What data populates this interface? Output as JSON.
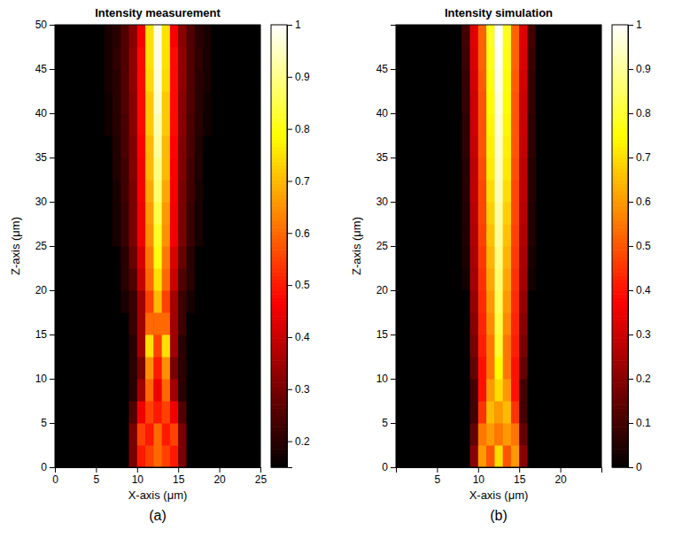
{
  "chart_data": [
    {
      "type": "heatmap",
      "title": "Intensity measurement",
      "x_label": "X-axis (μm)",
      "y_label": "Z-axis (μm)",
      "panel_label": "(a)",
      "x": [
        0.5,
        1.5,
        2.5,
        3.5,
        4.5,
        5.5,
        6.5,
        7.5,
        8.5,
        9.5,
        10.5,
        11.5,
        12.5,
        13.5,
        14.5,
        15.5,
        16.5,
        17.5,
        18.5,
        19.5,
        20.5,
        21.5,
        22.5,
        23.5,
        24.5
      ],
      "y": [
        1.25,
        3.75,
        6.25,
        8.75,
        11.25,
        13.75,
        16.25,
        18.75,
        21.25,
        23.75,
        26.25,
        28.75,
        31.25,
        33.75,
        36.25,
        38.75,
        41.25,
        43.75,
        46.25,
        48.75
      ],
      "values": [
        [
          0.15,
          0.15,
          0.15,
          0.15,
          0.15,
          0.15,
          0.15,
          0.15,
          0.15,
          0.3,
          0.5,
          0.55,
          0.6,
          0.55,
          0.5,
          0.3,
          0.15,
          0.15,
          0.15,
          0.15,
          0.15,
          0.15,
          0.15,
          0.15,
          0.15
        ],
        [
          0.15,
          0.15,
          0.15,
          0.15,
          0.15,
          0.15,
          0.15,
          0.15,
          0.15,
          0.3,
          0.55,
          0.5,
          0.6,
          0.5,
          0.55,
          0.3,
          0.15,
          0.15,
          0.15,
          0.15,
          0.15,
          0.15,
          0.15,
          0.15,
          0.15
        ],
        [
          0.15,
          0.15,
          0.15,
          0.15,
          0.15,
          0.15,
          0.15,
          0.15,
          0.15,
          0.25,
          0.45,
          0.55,
          0.5,
          0.55,
          0.45,
          0.25,
          0.15,
          0.15,
          0.15,
          0.15,
          0.15,
          0.15,
          0.15,
          0.15,
          0.15
        ],
        [
          0.15,
          0.15,
          0.15,
          0.15,
          0.15,
          0.15,
          0.15,
          0.15,
          0.15,
          0.2,
          0.35,
          0.6,
          0.45,
          0.6,
          0.35,
          0.2,
          0.15,
          0.15,
          0.15,
          0.15,
          0.15,
          0.15,
          0.15,
          0.15,
          0.15
        ],
        [
          0.15,
          0.15,
          0.15,
          0.15,
          0.15,
          0.15,
          0.15,
          0.15,
          0.15,
          0.2,
          0.3,
          0.65,
          0.5,
          0.65,
          0.3,
          0.2,
          0.15,
          0.15,
          0.15,
          0.15,
          0.15,
          0.15,
          0.15,
          0.15,
          0.15
        ],
        [
          0.15,
          0.15,
          0.15,
          0.15,
          0.15,
          0.15,
          0.15,
          0.15,
          0.15,
          0.2,
          0.35,
          0.75,
          0.55,
          0.75,
          0.35,
          0.2,
          0.15,
          0.15,
          0.15,
          0.15,
          0.15,
          0.15,
          0.15,
          0.15,
          0.15
        ],
        [
          0.15,
          0.15,
          0.15,
          0.15,
          0.15,
          0.15,
          0.15,
          0.15,
          0.15,
          0.22,
          0.35,
          0.6,
          0.6,
          0.6,
          0.35,
          0.22,
          0.15,
          0.15,
          0.15,
          0.15,
          0.15,
          0.15,
          0.15,
          0.15,
          0.15
        ],
        [
          0.15,
          0.15,
          0.15,
          0.15,
          0.15,
          0.15,
          0.15,
          0.15,
          0.18,
          0.22,
          0.35,
          0.55,
          0.7,
          0.55,
          0.35,
          0.22,
          0.18,
          0.15,
          0.15,
          0.15,
          0.15,
          0.15,
          0.15,
          0.15,
          0.15
        ],
        [
          0.15,
          0.15,
          0.15,
          0.15,
          0.15,
          0.15,
          0.15,
          0.15,
          0.2,
          0.25,
          0.4,
          0.6,
          0.75,
          0.6,
          0.4,
          0.25,
          0.2,
          0.15,
          0.15,
          0.15,
          0.15,
          0.15,
          0.15,
          0.15,
          0.15
        ],
        [
          0.15,
          0.15,
          0.15,
          0.15,
          0.15,
          0.15,
          0.15,
          0.15,
          0.2,
          0.28,
          0.42,
          0.62,
          0.8,
          0.62,
          0.42,
          0.28,
          0.2,
          0.15,
          0.15,
          0.15,
          0.15,
          0.15,
          0.15,
          0.15,
          0.15
        ],
        [
          0.15,
          0.15,
          0.15,
          0.15,
          0.15,
          0.15,
          0.15,
          0.18,
          0.22,
          0.3,
          0.45,
          0.65,
          0.82,
          0.65,
          0.45,
          0.3,
          0.22,
          0.18,
          0.15,
          0.15,
          0.15,
          0.15,
          0.15,
          0.15,
          0.15
        ],
        [
          0.15,
          0.15,
          0.15,
          0.15,
          0.15,
          0.15,
          0.15,
          0.18,
          0.22,
          0.3,
          0.45,
          0.66,
          0.85,
          0.66,
          0.45,
          0.3,
          0.22,
          0.18,
          0.15,
          0.15,
          0.15,
          0.15,
          0.15,
          0.15,
          0.15
        ],
        [
          0.15,
          0.15,
          0.15,
          0.15,
          0.15,
          0.15,
          0.15,
          0.18,
          0.23,
          0.3,
          0.46,
          0.68,
          0.88,
          0.68,
          0.46,
          0.3,
          0.23,
          0.18,
          0.15,
          0.15,
          0.15,
          0.15,
          0.15,
          0.15,
          0.15
        ],
        [
          0.15,
          0.15,
          0.15,
          0.15,
          0.15,
          0.15,
          0.15,
          0.19,
          0.23,
          0.31,
          0.46,
          0.7,
          0.9,
          0.7,
          0.46,
          0.31,
          0.23,
          0.19,
          0.15,
          0.15,
          0.15,
          0.15,
          0.15,
          0.15,
          0.15
        ],
        [
          0.15,
          0.15,
          0.15,
          0.15,
          0.15,
          0.15,
          0.15,
          0.19,
          0.24,
          0.31,
          0.47,
          0.7,
          0.92,
          0.7,
          0.47,
          0.31,
          0.24,
          0.19,
          0.15,
          0.15,
          0.15,
          0.15,
          0.15,
          0.15,
          0.15
        ],
        [
          0.15,
          0.15,
          0.15,
          0.15,
          0.15,
          0.15,
          0.17,
          0.2,
          0.24,
          0.32,
          0.48,
          0.72,
          0.94,
          0.72,
          0.48,
          0.32,
          0.24,
          0.2,
          0.17,
          0.15,
          0.15,
          0.15,
          0.15,
          0.15,
          0.15
        ],
        [
          0.15,
          0.15,
          0.15,
          0.15,
          0.15,
          0.15,
          0.17,
          0.2,
          0.25,
          0.32,
          0.48,
          0.72,
          0.96,
          0.72,
          0.48,
          0.32,
          0.25,
          0.2,
          0.17,
          0.15,
          0.15,
          0.15,
          0.15,
          0.15,
          0.15
        ],
        [
          0.15,
          0.15,
          0.15,
          0.15,
          0.15,
          0.15,
          0.18,
          0.2,
          0.25,
          0.33,
          0.48,
          0.74,
          0.97,
          0.74,
          0.48,
          0.33,
          0.25,
          0.2,
          0.18,
          0.15,
          0.15,
          0.15,
          0.15,
          0.15,
          0.15
        ],
        [
          0.15,
          0.15,
          0.15,
          0.15,
          0.15,
          0.15,
          0.18,
          0.21,
          0.25,
          0.33,
          0.48,
          0.75,
          0.98,
          0.75,
          0.48,
          0.33,
          0.25,
          0.21,
          0.18,
          0.15,
          0.15,
          0.15,
          0.15,
          0.15,
          0.15
        ],
        [
          0.15,
          0.15,
          0.15,
          0.15,
          0.15,
          0.15,
          0.18,
          0.2,
          0.25,
          0.32,
          0.46,
          0.75,
          0.98,
          0.75,
          0.46,
          0.32,
          0.25,
          0.2,
          0.18,
          0.15,
          0.15,
          0.15,
          0.15,
          0.15,
          0.15
        ]
      ],
      "xlim": [
        0,
        25
      ],
      "xticks": [
        0,
        5,
        10,
        15,
        20,
        25
      ],
      "ylim": [
        0,
        50
      ],
      "yticks": [
        0,
        5,
        10,
        15,
        20,
        25,
        30,
        35,
        40,
        45,
        50
      ],
      "colorbar": {
        "range": [
          0.15,
          1
        ],
        "ticks": [
          0.2,
          0.3,
          0.4,
          0.5,
          0.6,
          0.7,
          0.8,
          0.9,
          1
        ]
      }
    },
    {
      "type": "heatmap",
      "title": "Intensity simulation",
      "x_label": "X-axis (μm)",
      "y_label": "Z-axis (μm)",
      "panel_label": "(b)",
      "x": [
        0.5,
        1.5,
        2.5,
        3.5,
        4.5,
        5.5,
        6.5,
        7.5,
        8.5,
        9.5,
        10.5,
        11.5,
        12.5,
        13.5,
        14.5,
        15.5,
        16.5,
        17.5,
        18.5,
        19.5,
        20.5,
        21.5,
        22.5,
        23.5,
        24.5
      ],
      "y": [
        1.25,
        3.75,
        6.25,
        8.75,
        11.25,
        13.75,
        16.25,
        18.75,
        21.25,
        23.75,
        26.25,
        28.75,
        31.25,
        33.75,
        36.25,
        38.75,
        41.25,
        43.75,
        46.25,
        48.75
      ],
      "values": [
        [
          0,
          0,
          0,
          0,
          0,
          0,
          0,
          0,
          0,
          0.2,
          0.6,
          0.5,
          0.7,
          0.5,
          0.6,
          0.2,
          0,
          0,
          0,
          0,
          0,
          0,
          0,
          0,
          0
        ],
        [
          0,
          0,
          0,
          0,
          0,
          0,
          0,
          0,
          0,
          0.15,
          0.55,
          0.6,
          0.55,
          0.6,
          0.55,
          0.15,
          0,
          0,
          0,
          0,
          0,
          0,
          0,
          0,
          0
        ],
        [
          0,
          0,
          0,
          0,
          0,
          0,
          0,
          0,
          0,
          0.1,
          0.45,
          0.65,
          0.6,
          0.65,
          0.45,
          0.1,
          0,
          0,
          0,
          0,
          0,
          0,
          0,
          0,
          0
        ],
        [
          0,
          0,
          0,
          0,
          0,
          0,
          0,
          0,
          0,
          0.1,
          0.4,
          0.6,
          0.7,
          0.6,
          0.4,
          0.1,
          0,
          0,
          0,
          0,
          0,
          0,
          0,
          0,
          0
        ],
        [
          0,
          0,
          0,
          0,
          0,
          0,
          0,
          0,
          0,
          0.15,
          0.4,
          0.55,
          0.75,
          0.55,
          0.4,
          0.15,
          0,
          0,
          0,
          0,
          0,
          0,
          0,
          0,
          0
        ],
        [
          0,
          0,
          0,
          0,
          0,
          0,
          0,
          0,
          0,
          0.18,
          0.42,
          0.55,
          0.8,
          0.55,
          0.42,
          0.18,
          0,
          0,
          0,
          0,
          0,
          0,
          0,
          0,
          0
        ],
        [
          0,
          0,
          0,
          0,
          0,
          0,
          0,
          0,
          0,
          0.2,
          0.43,
          0.58,
          0.82,
          0.58,
          0.43,
          0.2,
          0,
          0,
          0,
          0,
          0,
          0,
          0,
          0,
          0
        ],
        [
          0,
          0,
          0,
          0,
          0,
          0,
          0,
          0,
          0,
          0.22,
          0.44,
          0.6,
          0.84,
          0.6,
          0.44,
          0.22,
          0,
          0,
          0,
          0,
          0,
          0,
          0,
          0,
          0
        ],
        [
          0,
          0,
          0,
          0,
          0,
          0,
          0,
          0,
          0.03,
          0.24,
          0.45,
          0.62,
          0.86,
          0.62,
          0.45,
          0.24,
          0.03,
          0,
          0,
          0,
          0,
          0,
          0,
          0,
          0
        ],
        [
          0,
          0,
          0,
          0,
          0,
          0,
          0,
          0,
          0.04,
          0.25,
          0.46,
          0.64,
          0.88,
          0.64,
          0.46,
          0.25,
          0.04,
          0,
          0,
          0,
          0,
          0,
          0,
          0,
          0
        ],
        [
          0,
          0,
          0,
          0,
          0,
          0,
          0,
          0,
          0.05,
          0.26,
          0.47,
          0.66,
          0.9,
          0.66,
          0.47,
          0.26,
          0.05,
          0,
          0,
          0,
          0,
          0,
          0,
          0,
          0
        ],
        [
          0,
          0,
          0,
          0,
          0,
          0,
          0,
          0,
          0.05,
          0.27,
          0.48,
          0.68,
          0.91,
          0.68,
          0.48,
          0.27,
          0.05,
          0,
          0,
          0,
          0,
          0,
          0,
          0,
          0
        ],
        [
          0,
          0,
          0,
          0,
          0,
          0,
          0,
          0,
          0.06,
          0.28,
          0.48,
          0.7,
          0.93,
          0.7,
          0.48,
          0.28,
          0.06,
          0,
          0,
          0,
          0,
          0,
          0,
          0,
          0
        ],
        [
          0,
          0,
          0,
          0,
          0,
          0,
          0,
          0,
          0.06,
          0.28,
          0.49,
          0.72,
          0.94,
          0.72,
          0.49,
          0.28,
          0.06,
          0,
          0,
          0,
          0,
          0,
          0,
          0,
          0
        ],
        [
          0,
          0,
          0,
          0,
          0,
          0,
          0,
          0,
          0.07,
          0.29,
          0.5,
          0.73,
          0.95,
          0.73,
          0.5,
          0.29,
          0.07,
          0,
          0,
          0,
          0,
          0,
          0,
          0,
          0
        ],
        [
          0,
          0,
          0,
          0,
          0,
          0,
          0,
          0,
          0.07,
          0.3,
          0.5,
          0.74,
          0.96,
          0.74,
          0.5,
          0.3,
          0.07,
          0,
          0,
          0,
          0,
          0,
          0,
          0,
          0
        ],
        [
          0,
          0,
          0,
          0,
          0,
          0,
          0,
          0,
          0.08,
          0.3,
          0.5,
          0.75,
          0.97,
          0.75,
          0.5,
          0.3,
          0.08,
          0,
          0,
          0,
          0,
          0,
          0,
          0,
          0
        ],
        [
          0,
          0,
          0,
          0,
          0,
          0,
          0,
          0,
          0.08,
          0.31,
          0.51,
          0.76,
          0.98,
          0.76,
          0.51,
          0.31,
          0.08,
          0,
          0,
          0,
          0,
          0,
          0,
          0,
          0
        ],
        [
          0,
          0,
          0,
          0,
          0,
          0,
          0,
          0,
          0.09,
          0.32,
          0.52,
          0.77,
          0.99,
          0.77,
          0.52,
          0.32,
          0.09,
          0,
          0,
          0,
          0,
          0,
          0,
          0,
          0
        ],
        [
          0,
          0,
          0,
          0,
          0,
          0,
          0,
          0,
          0.1,
          0.33,
          0.52,
          0.78,
          1,
          0.78,
          0.52,
          0.33,
          0.1,
          0,
          0,
          0,
          0,
          0,
          0,
          0,
          0
        ]
      ],
      "xlim": [
        0,
        25
      ],
      "xticks": [
        5,
        10,
        15,
        20
      ],
      "ylim": [
        0,
        50
      ],
      "yticks": [
        0,
        5,
        10,
        15,
        20,
        25,
        30,
        35,
        40,
        45
      ],
      "colorbar": {
        "range": [
          0,
          1
        ],
        "ticks": [
          0,
          0.1,
          0.2,
          0.3,
          0.4,
          0.5,
          0.6,
          0.7,
          0.8,
          0.9,
          1
        ]
      }
    }
  ]
}
